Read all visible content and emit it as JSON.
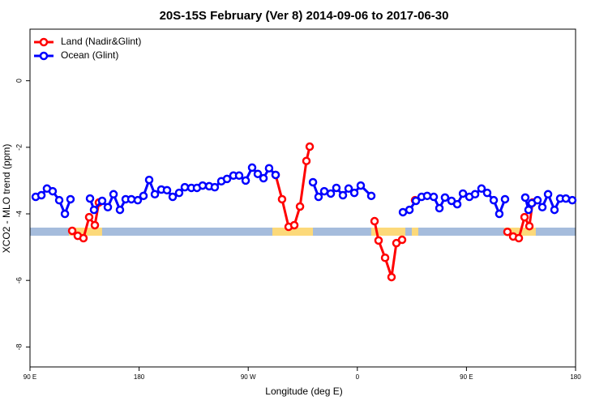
{
  "chart_data": {
    "type": "line",
    "title": "20S-15S February (Ver 8)   2014-09-06 to 2017-06-30",
    "xlabel": "Longitude (deg E)",
    "ylabel": "XCO2 - MLO trend (ppm)",
    "xlim": [
      90,
      540
    ],
    "ylim": [
      -8.6,
      1.55
    ],
    "xticks": [
      {
        "value": 90,
        "label": "90 E"
      },
      180,
      {
        "value": 270,
        "label": "90 W"
      },
      {
        "value": 360,
        "label": "0"
      },
      {
        "value": 450,
        "label": "90 E"
      },
      {
        "value": 540,
        "label": "180"
      }
    ],
    "yticks": [
      0,
      -2,
      -4,
      -6,
      -8
    ],
    "legend": "top-left",
    "series": [
      {
        "name": "Land (Nadir&Glint)",
        "color": "#ff0000",
        "x": [
          124.8,
          129.4,
          134.1,
          138.8,
          143.5,
          146.8,
          null,
          292.6,
          297.9,
          303.3,
          308.0,
          312.7,
          318.0,
          320.7,
          null,
          374.2,
          377.5,
          382.9,
          388.2,
          392.2,
          396.9,
          null,
          407.6,
          null,
          483.8,
          488.5,
          493.2,
          497.9,
          501.9,
          504.5
        ],
        "values": [
          -4.51,
          -4.66,
          -4.73,
          -4.1,
          -4.34,
          -3.66,
          null,
          -2.83,
          -3.56,
          -4.39,
          -4.34,
          -3.78,
          -2.41,
          -1.98,
          null,
          -4.22,
          -4.8,
          -5.32,
          -5.9,
          -4.88,
          -4.78,
          null,
          -3.59,
          null,
          -4.54,
          -4.68,
          -4.73,
          -4.1,
          -4.37,
          -3.66
        ]
      },
      {
        "name": "Ocean (Glint)",
        "color": "#0000ff",
        "x": [
          94.7,
          99.4,
          104.0,
          108.7,
          114.1,
          118.8,
          123.4,
          null,
          139.5,
          142.8,
          149.5,
          154.2,
          158.9,
          164.2,
          168.9,
          173.6,
          178.9,
          183.6,
          188.3,
          193.0,
          198.3,
          203.0,
          207.7,
          213.0,
          217.7,
          223.1,
          227.7,
          232.4,
          237.8,
          242.4,
          247.8,
          252.5,
          257.8,
          262.5,
          267.9,
          273.2,
          277.9,
          282.6,
          287.2,
          292.6,
          null,
          323.4,
          328.0,
          332.7,
          338.1,
          342.7,
          348.1,
          352.8,
          357.5,
          362.8,
          371.5,
          null,
          397.6,
          403.0,
          408.3,
          413.0,
          417.6,
          423.0,
          427.7,
          432.3,
          437.7,
          442.4,
          447.1,
          452.4,
          457.1,
          462.4,
          467.1,
          472.5,
          477.1,
          481.8,
          null,
          498.5,
          501.2,
          503.9,
          508.6,
          512.6,
          517.3,
          522.6,
          527.3,
          532.0,
          537.3
        ],
        "values": [
          -3.49,
          -3.44,
          -3.24,
          -3.32,
          -3.59,
          -4.0,
          -3.56,
          null,
          -3.54,
          -3.88,
          -3.61,
          -3.8,
          -3.41,
          -3.88,
          -3.56,
          -3.56,
          -3.59,
          -3.46,
          -2.98,
          -3.41,
          -3.27,
          -3.29,
          -3.49,
          -3.37,
          -3.2,
          -3.22,
          -3.22,
          -3.15,
          -3.17,
          -3.2,
          -3.02,
          -2.95,
          -2.85,
          -2.85,
          -3.0,
          -2.61,
          -2.8,
          -2.93,
          -2.63,
          -2.83,
          null,
          -3.05,
          -3.49,
          -3.32,
          -3.39,
          -3.22,
          -3.44,
          -3.24,
          -3.37,
          -3.15,
          -3.46,
          null,
          -3.95,
          -3.88,
          -3.61,
          -3.49,
          -3.46,
          -3.49,
          -3.83,
          -3.51,
          -3.61,
          -3.71,
          -3.39,
          -3.49,
          -3.41,
          -3.24,
          -3.37,
          -3.59,
          -4.0,
          -3.56,
          null,
          -3.51,
          -3.88,
          -3.68,
          -3.59,
          -3.8,
          -3.41,
          -3.88,
          -3.54,
          -3.54,
          -3.59
        ]
      }
    ]
  }
}
